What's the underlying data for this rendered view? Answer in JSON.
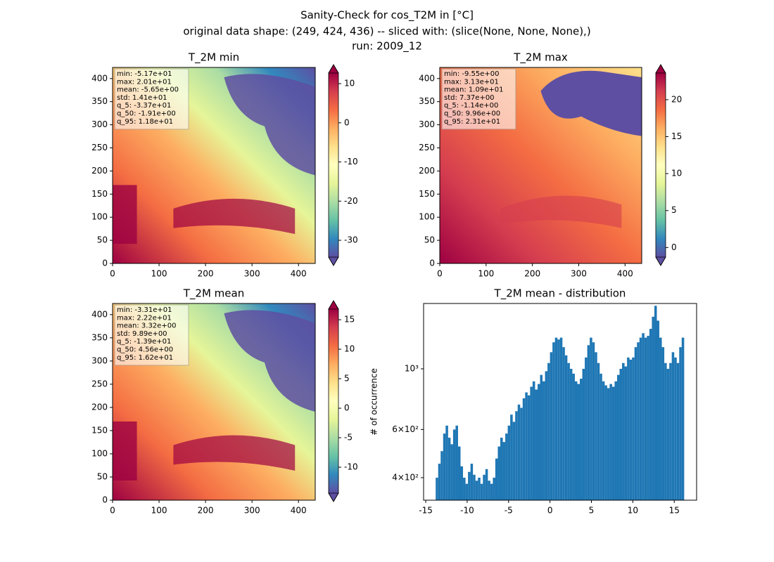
{
  "suptitle": [
    "Sanity-Check for cos_T2M in [°C]",
    "original data shape: (249, 424, 436) -- sliced with: (slice(None, None, None),)",
    "run: 2009_12"
  ],
  "chart_data": [
    {
      "type": "heatmap",
      "title": "T_2M min",
      "variant": "min",
      "stats": [
        "min: -5.17e+01",
        "max: 2.01e+01",
        "mean: -5.65e+00",
        "std: 1.41e+01",
        "q_5: -3.37e+01",
        "q_50: -1.91e+00",
        "q_95: 1.18e+01"
      ],
      "xlim": [
        0,
        436
      ],
      "ylim": [
        0,
        424
      ],
      "xticks": [
        0,
        100,
        200,
        300,
        400
      ],
      "yticks": [
        0,
        50,
        100,
        150,
        200,
        250,
        300,
        350,
        400
      ],
      "colorbar": {
        "clim": [
          -34.3,
          12.7
        ],
        "ticks": [
          10,
          0,
          -10,
          -20,
          -30
        ],
        "colors": [
          "#5e4fa2",
          "#3288bd",
          "#66c2a5",
          "#abdda4",
          "#e6f598",
          "#ffffbf",
          "#fee08b",
          "#fdae61",
          "#f46d43",
          "#d53e4f",
          "#9e0142"
        ]
      }
    },
    {
      "type": "heatmap",
      "title": "T_2M max",
      "variant": "max",
      "stats": [
        "min: -9.55e+00",
        "max: 3.13e+01",
        "mean: 1.09e+01",
        "std: 7.37e+00",
        "q_5: -1.14e+00",
        "q_50: 9.96e+00",
        "q_95: 2.31e+01"
      ],
      "xlim": [
        0,
        436
      ],
      "ylim": [
        0,
        424
      ],
      "xticks": [
        0,
        100,
        200,
        300,
        400
      ],
      "yticks": [
        0,
        50,
        100,
        150,
        200,
        250,
        300,
        350,
        400
      ],
      "colorbar": {
        "clim": [
          -1.3,
          23.6
        ],
        "ticks": [
          0,
          5,
          10,
          15,
          20
        ],
        "colors": [
          "#5e4fa2",
          "#3288bd",
          "#66c2a5",
          "#abdda4",
          "#e6f598",
          "#ffffbf",
          "#fee08b",
          "#fdae61",
          "#f46d43",
          "#d53e4f",
          "#9e0142"
        ]
      }
    },
    {
      "type": "heatmap",
      "title": "T_2M mean",
      "variant": "mean",
      "stats": [
        "min: -3.31e+01",
        "max: 2.22e+01",
        "mean: 3.32e+00",
        "std: 9.89e+00",
        "q_5: -1.39e+01",
        "q_50: 4.56e+00",
        "q_95: 1.62e+01"
      ],
      "xlim": [
        0,
        436
      ],
      "ylim": [
        0,
        424
      ],
      "xticks": [
        0,
        100,
        200,
        300,
        400
      ],
      "yticks": [
        0,
        50,
        100,
        150,
        200,
        250,
        300,
        350,
        400
      ],
      "colorbar": {
        "clim": [
          -14.4,
          16.8
        ],
        "ticks": [
          15,
          10,
          5,
          0,
          -5,
          -10
        ],
        "colors": [
          "#5e4fa2",
          "#3288bd",
          "#66c2a5",
          "#abdda4",
          "#e6f598",
          "#ffffbf",
          "#fee08b",
          "#fdae61",
          "#f46d43",
          "#d53e4f",
          "#9e0142"
        ]
      }
    },
    {
      "type": "histogram",
      "title": "T_2M mean - distribution",
      "ylabel": "# of occurrence",
      "color": "#1f77b4",
      "log_y": true,
      "bins": [
        -13.8,
        -13.5,
        -13.2,
        -12.9,
        -12.6,
        -12.3,
        -12,
        -11.7,
        -11.4,
        -11.1,
        -10.8,
        -10.5,
        -10.2,
        -9.9,
        -9.6,
        -9.3,
        -9,
        -8.7,
        -8.4,
        -8.1,
        -7.8,
        -7.5,
        -7.2,
        -6.9,
        -6.6,
        -6.3,
        -6,
        -5.7,
        -5.4,
        -5.1,
        -4.8,
        -4.5,
        -4.2,
        -3.9,
        -3.6,
        -3.3,
        -3,
        -2.7,
        -2.4,
        -2.1,
        -1.8,
        -1.5,
        -1.2,
        -0.9,
        -0.6,
        -0.3,
        0,
        0.3,
        0.6,
        0.9,
        1.2,
        1.5,
        1.8,
        2.1,
        2.4,
        2.7,
        3,
        3.3,
        3.6,
        3.9,
        4.2,
        4.5,
        4.8,
        5.1,
        5.4,
        5.7,
        6,
        6.3,
        6.6,
        6.9,
        7.2,
        7.5,
        7.8,
        8.1,
        8.4,
        8.7,
        9,
        9.3,
        9.6,
        9.9,
        10.2,
        10.5,
        10.8,
        11.1,
        11.4,
        11.7,
        12,
        12.3,
        12.6,
        12.9,
        13.2,
        13.5,
        13.8,
        14.1,
        14.4,
        14.7,
        15,
        15.3,
        15.6,
        15.9,
        16.2
      ],
      "values": [
        400,
        450,
        500,
        580,
        620,
        560,
        530,
        600,
        620,
        520,
        440,
        400,
        380,
        420,
        450,
        410,
        390,
        400,
        380,
        410,
        430,
        390,
        380,
        400,
        470,
        520,
        560,
        540,
        580,
        620,
        680,
        640,
        700,
        740,
        720,
        780,
        820,
        800,
        860,
        900,
        840,
        880,
        950,
        900,
        980,
        1050,
        1150,
        1250,
        1300,
        1280,
        1300,
        1200,
        1120,
        1050,
        1000,
        960,
        900,
        880,
        920,
        1000,
        1100,
        1220,
        1300,
        1250,
        1150,
        1050,
        960,
        900,
        870,
        850,
        880,
        860,
        900,
        950,
        1000,
        1050,
        1020,
        1100,
        1080,
        1100,
        1200,
        1250,
        1300,
        1350,
        1300,
        1320,
        1400,
        1550,
        1700,
        1500,
        1300,
        1200,
        1050,
        1000,
        1050,
        1150,
        1100,
        1050,
        1200,
        1300
      ],
      "xlim": [
        -15.26,
        17.7
      ],
      "ylim": [
        331,
        1733
      ],
      "xticks": [
        -15,
        -10,
        -5,
        0,
        5,
        10,
        15
      ],
      "yticks": [
        {
          "value": 400,
          "label": "4×10²"
        },
        {
          "value": 600,
          "label": "6×10²"
        },
        {
          "value": 1000,
          "label": "10³"
        }
      ]
    }
  ]
}
